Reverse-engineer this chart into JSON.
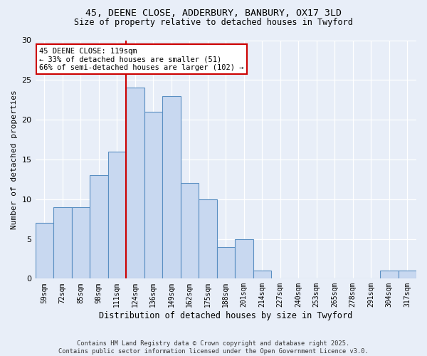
{
  "title_line1": "45, DEENE CLOSE, ADDERBURY, BANBURY, OX17 3LD",
  "title_line2": "Size of property relative to detached houses in Twyford",
  "xlabel": "Distribution of detached houses by size in Twyford",
  "ylabel": "Number of detached properties",
  "bin_labels": [
    "59sqm",
    "72sqm",
    "85sqm",
    "98sqm",
    "111sqm",
    "124sqm",
    "136sqm",
    "149sqm",
    "162sqm",
    "175sqm",
    "188sqm",
    "201sqm",
    "214sqm",
    "227sqm",
    "240sqm",
    "253sqm",
    "265sqm",
    "278sqm",
    "291sqm",
    "304sqm",
    "317sqm"
  ],
  "bar_heights": [
    7,
    9,
    9,
    13,
    16,
    24,
    21,
    23,
    12,
    10,
    4,
    5,
    1,
    0,
    0,
    0,
    0,
    0,
    0,
    1,
    1
  ],
  "bar_color": "#c8d8f0",
  "bar_edge_color": "#5a8fc2",
  "vline_x_index": 5,
  "vline_color": "#cc0000",
  "annotation_text": "45 DEENE CLOSE: 119sqm\n← 33% of detached houses are smaller (51)\n66% of semi-detached houses are larger (102) →",
  "annotation_box_color": "#ffffff",
  "annotation_box_edge": "#cc0000",
  "ylim": [
    0,
    30
  ],
  "yticks": [
    0,
    5,
    10,
    15,
    20,
    25,
    30
  ],
  "footer": "Contains HM Land Registry data © Crown copyright and database right 2025.\nContains public sector information licensed under the Open Government Licence v3.0.",
  "bg_color": "#e8eef8",
  "plot_bg_color": "#e8eef8"
}
